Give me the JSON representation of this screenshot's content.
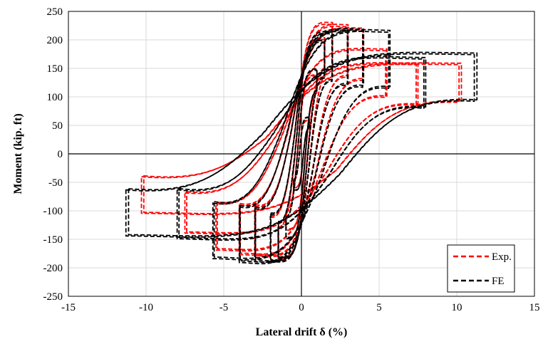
{
  "chart_data": {
    "type": "line",
    "title": "",
    "xlabel": "Lateral drift δ (%)",
    "ylabel": "Moment (kip. ft)",
    "xlim": [
      -15,
      15
    ],
    "ylim": [
      -250,
      250
    ],
    "xticks": [
      -15,
      -10,
      -5,
      0,
      5,
      10,
      15
    ],
    "yticks": [
      -250,
      -200,
      -150,
      -100,
      -50,
      0,
      50,
      100,
      150,
      200,
      250
    ],
    "grid": true,
    "legend": "bottom-right",
    "series": [
      {
        "name": "Exp.",
        "color": "#ff0000",
        "style": "dashed",
        "loops": [
          {
            "amp": 0.5,
            "mmax": 60,
            "mmin": -60,
            "width": 12
          },
          {
            "amp": 1.0,
            "mmax": 140,
            "mmin": -135,
            "width": 25
          },
          {
            "amp": 1.5,
            "mmax": 205,
            "mmin": -185,
            "width": 45
          },
          {
            "amp": 2.0,
            "mmax": 232,
            "mmin": -190,
            "width": 70
          },
          {
            "amp": 3.0,
            "mmax": 228,
            "mmin": -180,
            "width": 80
          },
          {
            "amp": 4.0,
            "mmax": 222,
            "mmin": -178,
            "width": 80
          },
          {
            "amp": 5.5,
            "mmax": 185,
            "mmin": -170,
            "width": 75
          },
          {
            "amp": 7.5,
            "mmax": 160,
            "mmin": -140,
            "width": 65
          },
          {
            "amp": 10.3,
            "mmax": 160,
            "mmin": -105,
            "width": 60
          }
        ]
      },
      {
        "name": "FE",
        "color": "#000000",
        "style": "dashed",
        "loops": [
          {
            "amp": 0.5,
            "mmax": 65,
            "mmin": -65,
            "width": 15
          },
          {
            "amp": 1.0,
            "mmax": 150,
            "mmin": -150,
            "width": 30
          },
          {
            "amp": 1.5,
            "mmax": 200,
            "mmin": -185,
            "width": 55
          },
          {
            "amp": 2.0,
            "mmax": 215,
            "mmin": -190,
            "width": 75
          },
          {
            "amp": 3.0,
            "mmax": 218,
            "mmin": -190,
            "width": 85
          },
          {
            "amp": 4.0,
            "mmax": 220,
            "mmin": -192,
            "width": 90
          },
          {
            "amp": 5.7,
            "mmax": 218,
            "mmin": -185,
            "width": 90
          },
          {
            "amp": 8.0,
            "mmax": 170,
            "mmin": -150,
            "width": 80
          },
          {
            "amp": 11.3,
            "mmax": 178,
            "mmin": -145,
            "width": 75
          }
        ]
      }
    ]
  }
}
